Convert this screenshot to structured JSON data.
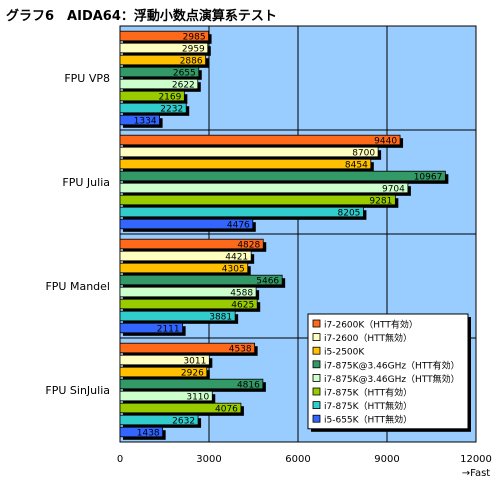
{
  "chart_data": {
    "type": "bar",
    "orientation": "horizontal",
    "title": "グラフ6　AIDA64：浮動小数点演算系テスト",
    "xlabel": "→Fast",
    "ylabel": "",
    "xlim": [
      0,
      12000
    ],
    "xticks": [
      "0",
      "3000",
      "6000",
      "9000",
      "12000"
    ],
    "grid": true,
    "legend_position": "bottom-right",
    "categories": [
      "FPU VP8",
      "FPU Julia",
      "FPU Mandel",
      "FPU SinJulia"
    ],
    "series": [
      {
        "name": "i7-2600K（HTT有効）",
        "color": "#ff6a1a",
        "values": [
          2985,
          9440,
          4828,
          4538
        ]
      },
      {
        "name": "i7-2600（HTT無効）",
        "color": "#ffffc0",
        "values": [
          2959,
          8700,
          4421,
          3011
        ]
      },
      {
        "name": "i5-2500K",
        "color": "#ffc000",
        "values": [
          2886,
          8454,
          4305,
          2926
        ]
      },
      {
        "name": "i7-875K@3.46GHz（HTT有効）",
        "color": "#339966",
        "values": [
          2655,
          10967,
          5466,
          4816
        ]
      },
      {
        "name": "i7-875K@3.46GHz（HTT無効）",
        "color": "#ccffcc",
        "values": [
          2622,
          9704,
          4588,
          3110
        ]
      },
      {
        "name": "i7-875K（HTT有効）",
        "color": "#99cc00",
        "values": [
          2169,
          9281,
          4625,
          4076
        ]
      },
      {
        "name": "i7-875K（HTT無効）",
        "color": "#33cccc",
        "values": [
          2232,
          8205,
          3881,
          2632
        ]
      },
      {
        "name": "i5-655K（HTT無効）",
        "color": "#3366ff",
        "values": [
          1334,
          4476,
          2111,
          1438
        ]
      }
    ]
  }
}
